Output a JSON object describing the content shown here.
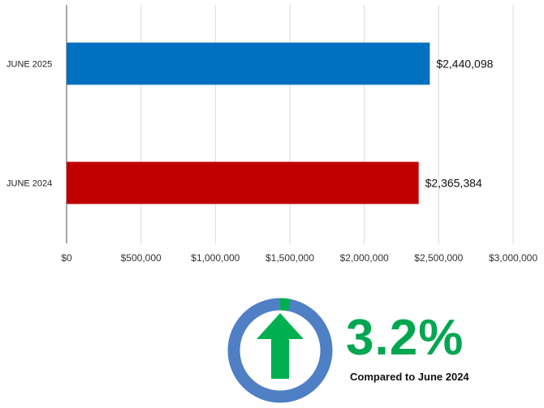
{
  "chart_data": {
    "type": "bar",
    "orientation": "horizontal",
    "categories": [
      "JUNE 2025",
      "JUNE 2024"
    ],
    "values": [
      2440098,
      2365384
    ],
    "value_labels": [
      "$2,440,098",
      "$2,365,384"
    ],
    "colors": [
      "#0070c0",
      "#c00000"
    ],
    "xlim": [
      0,
      3000000
    ],
    "xticks": [
      0,
      500000,
      1000000,
      1500000,
      2000000,
      2500000,
      3000000
    ],
    "xtick_labels": [
      "$0",
      "$500,000",
      "$1,000,000",
      "$1,500,000",
      "$2,000,000",
      "$2,500,000",
      "$3,000,000"
    ],
    "grid": true,
    "title": "",
    "xlabel": "",
    "ylabel": ""
  },
  "change_indicator": {
    "value": "3.2%",
    "caption": "Compared to June 2024",
    "direction": "up",
    "icon": "up-arrow-icon",
    "ring_color": "#4f7fc4",
    "accent_color": "#00b050",
    "fill_fraction": 0.032
  }
}
